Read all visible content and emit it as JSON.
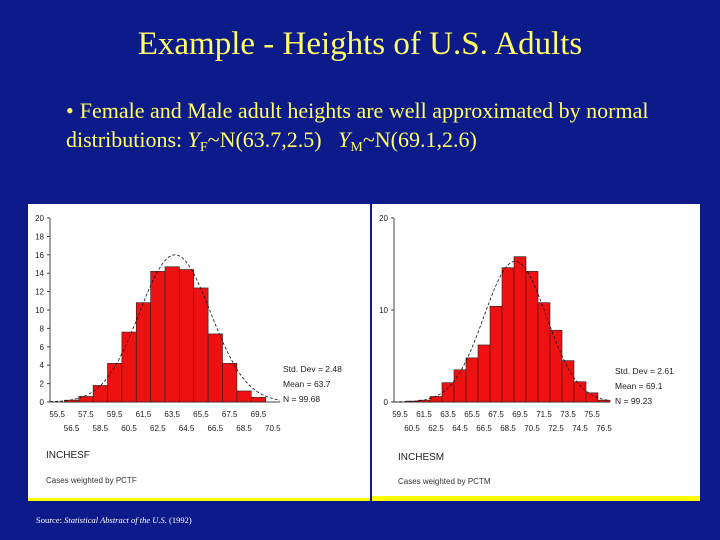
{
  "slide": {
    "title": "Example - Heights of U.S. Adults",
    "bullet_marker": "•",
    "bullet_text": "Female and Male adult heights are well approximated by normal distributions:",
    "female_symbol": "Y",
    "female_sub": "F",
    "female_dist": "~N(63.7,2.5)",
    "male_symbol": "Y",
    "male_sub": "M",
    "male_dist": "~N(69.1,2.6)",
    "source_prefix": "Source: ",
    "source_title": "Statistical Abstract of the U.S.",
    "source_year": "(1992)"
  },
  "colors": {
    "background": "#0c1a8a",
    "title_text": "#ffff66",
    "bar_fill": "#ee1111",
    "panel_border": "#ffff00"
  },
  "female_panel": {
    "variable": "INCHESF",
    "weight_note": "Cases weighted by PCTF",
    "stat_sd": "Std. Dev = 2.48",
    "stat_mean": "Mean = 63.7",
    "stat_n": "N = 99.68"
  },
  "male_panel": {
    "variable": "INCHESM",
    "weight_note": "Cases weighted by PCTM",
    "stat_sd": "Std. Dev = 2.61",
    "stat_mean": "Mean = 69.1",
    "stat_n": "N = 99.23"
  },
  "chart_data": [
    {
      "type": "bar",
      "title": "",
      "xlabel": "INCHESF",
      "ylabel": "",
      "ylim": [
        0,
        20
      ],
      "y_ticks": [
        0,
        2,
        4,
        6,
        8,
        10,
        12,
        14,
        16,
        18,
        20
      ],
      "y_tick_labels": [
        "0",
        "2",
        "4",
        "6",
        "8",
        "10",
        "12",
        "14",
        "16",
        "18",
        "20"
      ],
      "x_tick_labels_top": [
        "55.5",
        "57.5",
        "59.5",
        "61.5",
        "63.5",
        "65.5",
        "67.5",
        "69.5"
      ],
      "x_tick_labels_bottom": [
        "56.5",
        "58.5",
        "60.5",
        "62.5",
        "64.5",
        "66.5",
        "68.5",
        "70.5"
      ],
      "categories": [
        "55.5",
        "56.5",
        "57.5",
        "58.5",
        "59.5",
        "60.5",
        "61.5",
        "62.5",
        "63.5",
        "64.5",
        "65.5",
        "66.5",
        "67.5",
        "68.5",
        "69.5",
        "70.5"
      ],
      "values": [
        0,
        0.2,
        0.6,
        1.8,
        4.2,
        7.6,
        10.8,
        14.2,
        14.7,
        14.4,
        12.4,
        7.4,
        4.2,
        1.2,
        0.5,
        0
      ],
      "normal_curve": {
        "mean": 63.7,
        "sd": 2.48,
        "peak": 16.0
      }
    },
    {
      "type": "bar",
      "title": "",
      "xlabel": "INCHESM",
      "ylabel": "",
      "ylim": [
        0,
        20
      ],
      "y_ticks": [
        0,
        10,
        20
      ],
      "y_tick_labels": [
        "0",
        "10",
        "20"
      ],
      "x_tick_labels_top": [
        "59.5",
        "61.5",
        "63.5",
        "65.5",
        "67.5",
        "69.5",
        "71.5",
        "73.5",
        "75.5"
      ],
      "x_tick_labels_bottom": [
        "60.5",
        "62.5",
        "64.5",
        "66.5",
        "68.5",
        "70.5",
        "72.5",
        "74.5",
        "76.5"
      ],
      "categories": [
        "59.5",
        "60.5",
        "61.5",
        "62.5",
        "63.5",
        "64.5",
        "65.5",
        "66.5",
        "67.5",
        "68.5",
        "69.5",
        "70.5",
        "71.5",
        "72.5",
        "73.5",
        "74.5",
        "75.5",
        "76.5"
      ],
      "values": [
        0,
        0.1,
        0.2,
        0.6,
        2.1,
        3.5,
        4.8,
        6.2,
        10.4,
        14.6,
        15.8,
        14.2,
        10.8,
        7.8,
        4.5,
        2.2,
        1.0,
        0.2
      ],
      "normal_curve": {
        "mean": 69.1,
        "sd": 2.61,
        "peak": 15.3
      }
    }
  ]
}
